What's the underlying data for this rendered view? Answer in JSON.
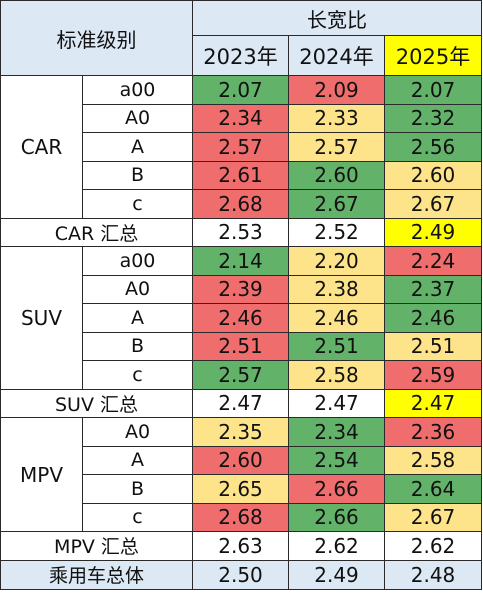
{
  "header": {
    "level_label": "标准级别",
    "group_label": "长宽比",
    "years": [
      "2023年",
      "2024年",
      "2025年"
    ]
  },
  "colors": {
    "green": "#63b26a",
    "red": "#f06d6d",
    "light_yellow": "#fde48a",
    "highlight_yellow": "#ffff00",
    "header_blue": "#dce8f4"
  },
  "groups": [
    {
      "category": "CAR",
      "rows": [
        {
          "level": "a00",
          "values": [
            "2.07",
            "2.09",
            "2.07"
          ],
          "colors": [
            "green",
            "red",
            "green"
          ]
        },
        {
          "level": "A0",
          "values": [
            "2.34",
            "2.33",
            "2.32"
          ],
          "colors": [
            "red",
            "light_yellow",
            "green"
          ]
        },
        {
          "level": "A",
          "values": [
            "2.57",
            "2.57",
            "2.56"
          ],
          "colors": [
            "red",
            "light_yellow",
            "green"
          ]
        },
        {
          "level": "B",
          "values": [
            "2.61",
            "2.60",
            "2.60"
          ],
          "colors": [
            "red",
            "green",
            "light_yellow"
          ]
        },
        {
          "level": "c",
          "values": [
            "2.68",
            "2.67",
            "2.67"
          ],
          "colors": [
            "red",
            "green",
            "light_yellow"
          ]
        }
      ],
      "summary": {
        "label": "CAR 汇总",
        "values": [
          "2.53",
          "2.52",
          "2.49"
        ],
        "colors": [
          "white",
          "white",
          "highlight_yellow"
        ]
      }
    },
    {
      "category": "SUV",
      "rows": [
        {
          "level": "a00",
          "values": [
            "2.14",
            "2.20",
            "2.24"
          ],
          "colors": [
            "green",
            "light_yellow",
            "red"
          ]
        },
        {
          "level": "A0",
          "values": [
            "2.39",
            "2.38",
            "2.37"
          ],
          "colors": [
            "red",
            "light_yellow",
            "green"
          ]
        },
        {
          "level": "A",
          "values": [
            "2.46",
            "2.46",
            "2.46"
          ],
          "colors": [
            "red",
            "light_yellow",
            "green"
          ]
        },
        {
          "level": "B",
          "values": [
            "2.51",
            "2.51",
            "2.51"
          ],
          "colors": [
            "red",
            "green",
            "light_yellow"
          ]
        },
        {
          "level": "c",
          "values": [
            "2.57",
            "2.58",
            "2.59"
          ],
          "colors": [
            "green",
            "light_yellow",
            "red"
          ]
        }
      ],
      "summary": {
        "label": "SUV 汇总",
        "values": [
          "2.47",
          "2.47",
          "2.47"
        ],
        "colors": [
          "white",
          "white",
          "highlight_yellow"
        ]
      }
    },
    {
      "category": "MPV",
      "rows": [
        {
          "level": "A0",
          "values": [
            "2.35",
            "2.34",
            "2.36"
          ],
          "colors": [
            "light_yellow",
            "green",
            "red"
          ]
        },
        {
          "level": "A",
          "values": [
            "2.60",
            "2.54",
            "2.58"
          ],
          "colors": [
            "red",
            "green",
            "light_yellow"
          ]
        },
        {
          "level": "B",
          "values": [
            "2.65",
            "2.66",
            "2.64"
          ],
          "colors": [
            "light_yellow",
            "red",
            "green"
          ]
        },
        {
          "level": "c",
          "values": [
            "2.68",
            "2.66",
            "2.67"
          ],
          "colors": [
            "red",
            "green",
            "light_yellow"
          ]
        }
      ],
      "summary": {
        "label": "MPV 汇总",
        "values": [
          "2.63",
          "2.62",
          "2.62"
        ],
        "colors": [
          "white",
          "white",
          "white"
        ]
      }
    }
  ],
  "total": {
    "label": "乘用车总体",
    "values": [
      "2.50",
      "2.49",
      "2.48"
    ]
  }
}
